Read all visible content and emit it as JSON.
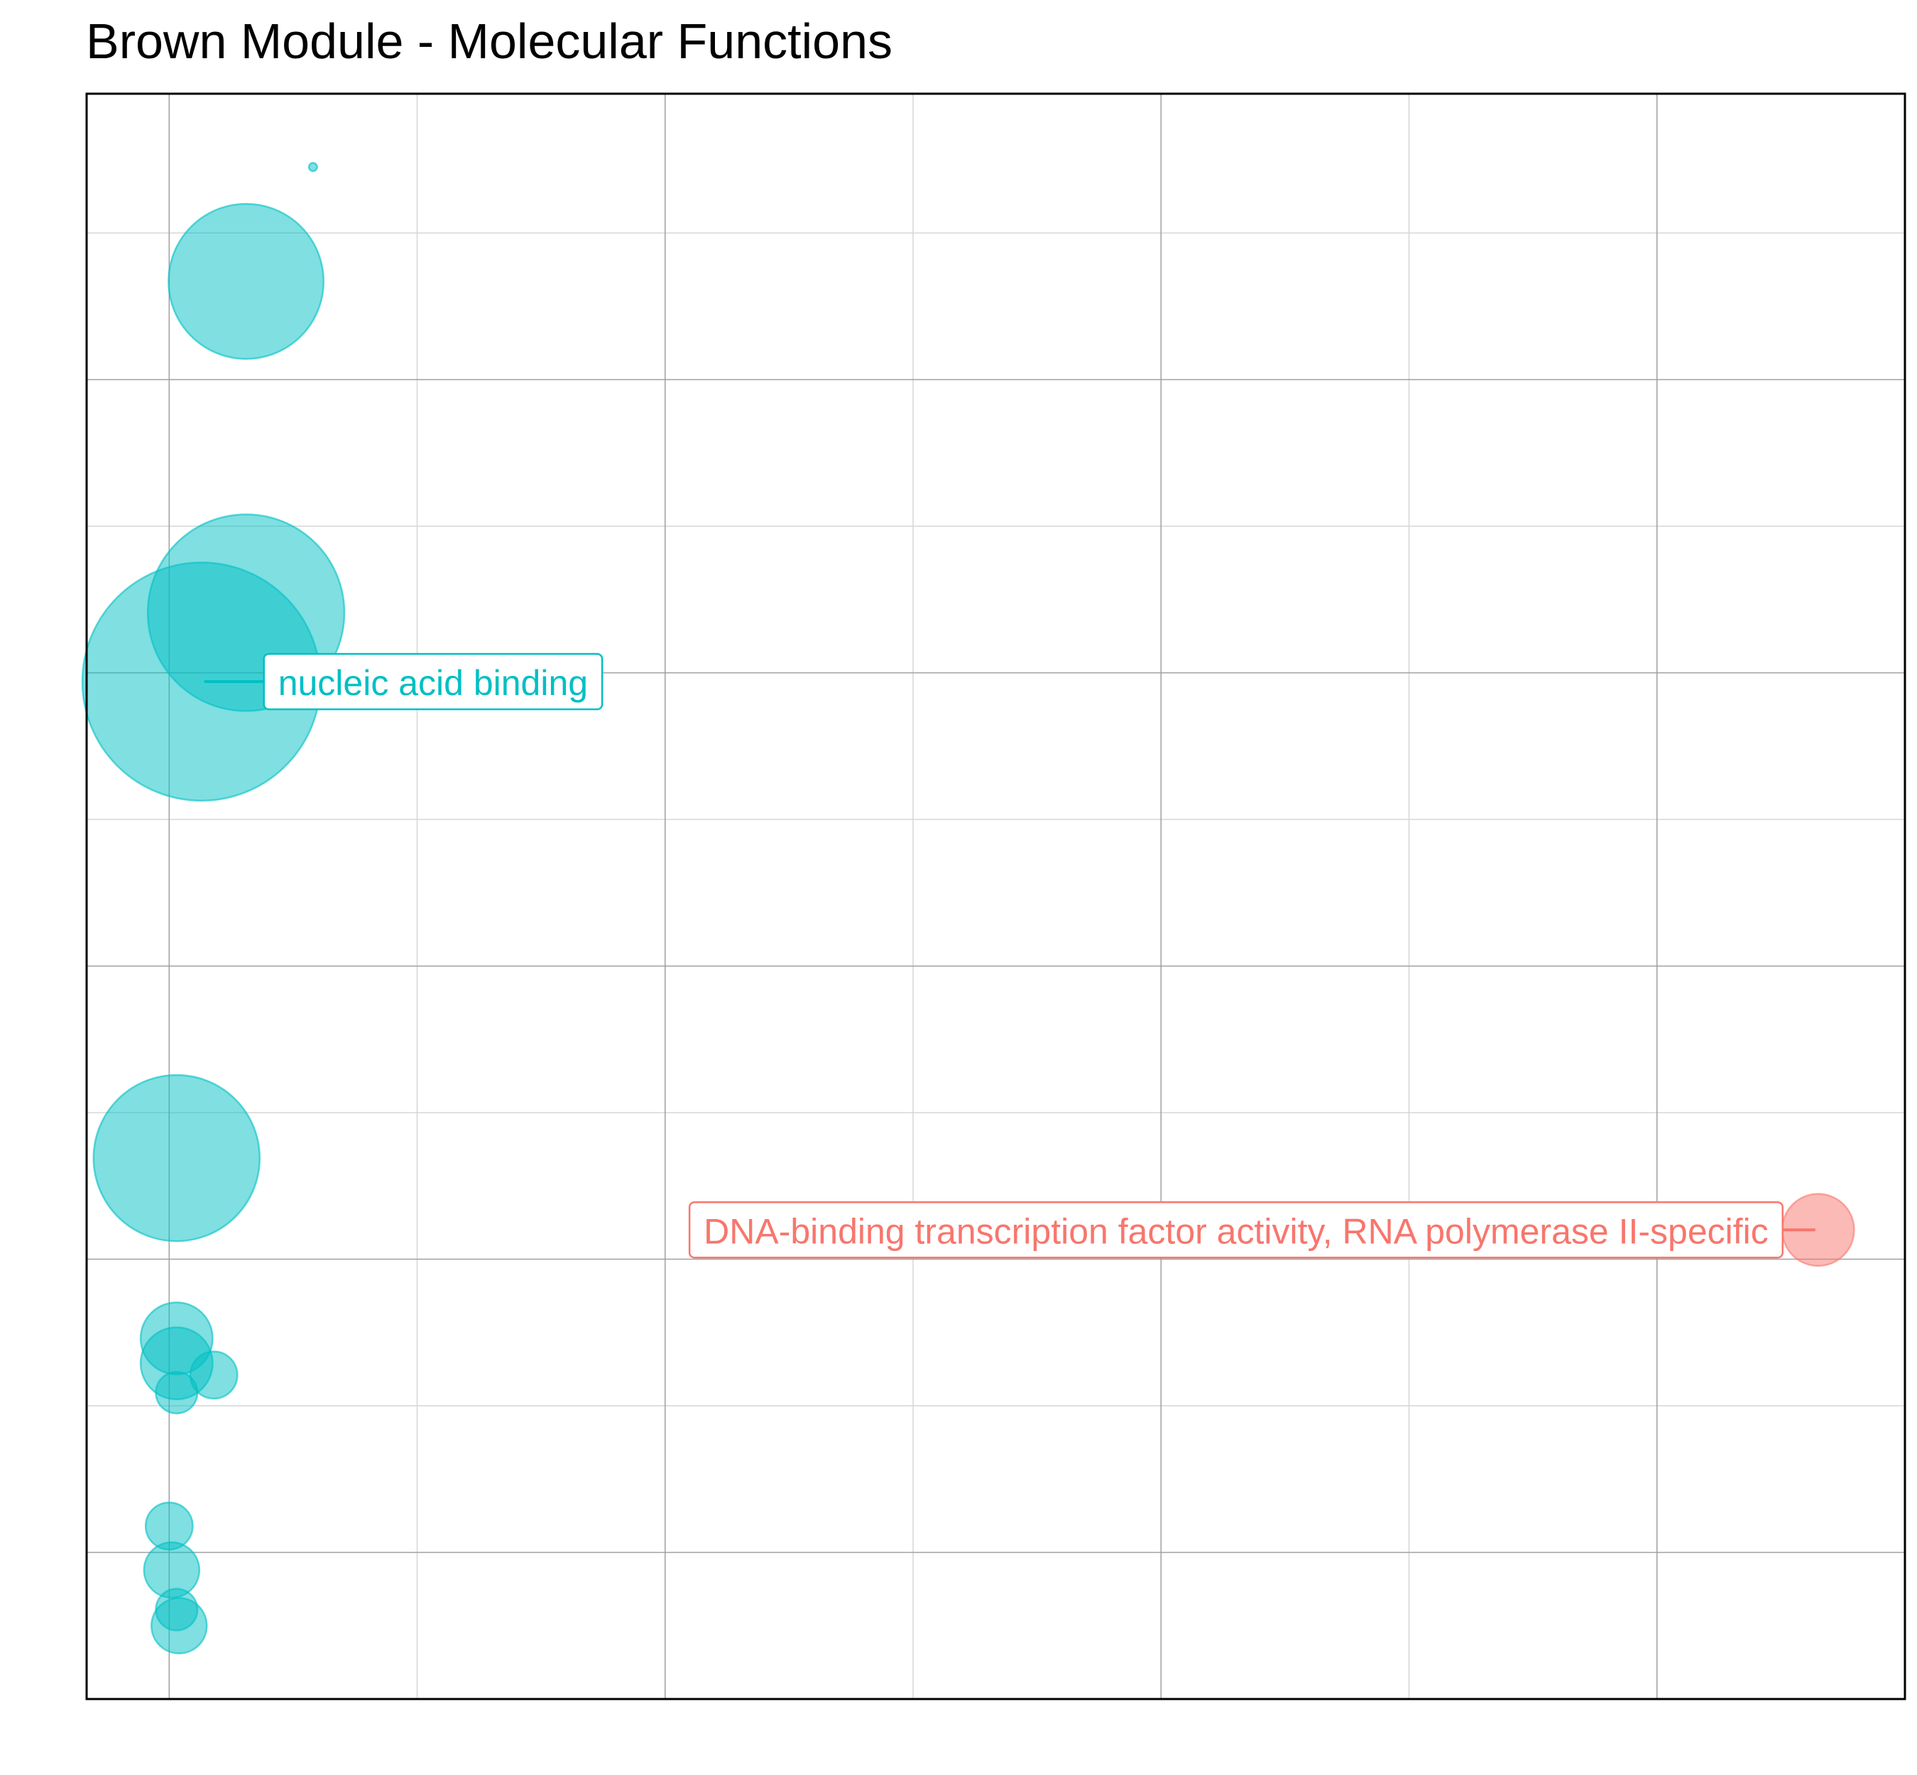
{
  "chart_data": {
    "type": "scatter",
    "title": "Brown Module - Molecular Functions",
    "xlabel": "",
    "ylabel": "",
    "xlim": [
      -0.333,
      7.0
    ],
    "ylim": [
      0.0,
      10.95
    ],
    "x_major_ticks": [
      0,
      2,
      4,
      6
    ],
    "x_minor_ticks": [
      1,
      3,
      5
    ],
    "y_major_ticks": [
      1,
      3,
      5,
      7,
      9
    ],
    "y_minor_ticks": [
      0,
      2,
      4,
      6,
      8,
      10
    ],
    "grid": true,
    "axis_tick_labels_shown": false,
    "legend": "none",
    "colors": {
      "highlighted": "#F8766D",
      "other": "#00BFC4"
    },
    "points": [
      {
        "x": 0.58,
        "y": 10.45,
        "size": 0.3,
        "group": "other"
      },
      {
        "x": 0.31,
        "y": 9.67,
        "size": 5.6,
        "group": "other"
      },
      {
        "x": 0.31,
        "y": 7.41,
        "size": 7.1,
        "group": "other"
      },
      {
        "x": 0.13,
        "y": 6.94,
        "size": 8.6,
        "group": "other",
        "label": "nucleic acid binding"
      },
      {
        "x": 0.03,
        "y": 3.69,
        "size": 6.0,
        "group": "other"
      },
      {
        "x": 0.03,
        "y": 2.46,
        "size": 2.6,
        "group": "other"
      },
      {
        "x": 0.03,
        "y": 2.29,
        "size": 2.6,
        "group": "other"
      },
      {
        "x": 0.18,
        "y": 2.21,
        "size": 1.7,
        "group": "other"
      },
      {
        "x": 0.03,
        "y": 2.09,
        "size": 1.5,
        "group": "other"
      },
      {
        "x": 0.0,
        "y": 1.18,
        "size": 1.7,
        "group": "other"
      },
      {
        "x": 0.01,
        "y": 0.88,
        "size": 2.0,
        "group": "other"
      },
      {
        "x": 0.03,
        "y": 0.61,
        "size": 1.5,
        "group": "other"
      },
      {
        "x": 0.04,
        "y": 0.5,
        "size": 2.0,
        "group": "other"
      },
      {
        "x": 6.65,
        "y": 3.2,
        "size": 2.6,
        "group": "highlighted",
        "label": "DNA-binding transcription factor activity, RNA polymerase II-specific"
      }
    ]
  }
}
